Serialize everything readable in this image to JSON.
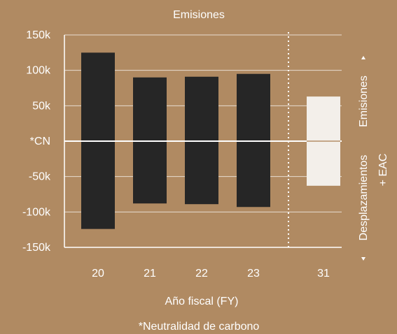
{
  "chart_data": {
    "type": "bar",
    "title": "Emisiones",
    "xlabel": "Año fiscal (FY)",
    "footnote": "*Neutralidad de carbono",
    "categories": [
      "20",
      "21",
      "22",
      "23",
      "31"
    ],
    "series": [
      {
        "values": [
          125000,
          90000,
          91000,
          95000,
          63000
        ]
      },
      {
        "values": [
          -124000,
          -88000,
          -89000,
          -93000,
          -63000
        ]
      }
    ],
    "ylim": [
      -150000,
      150000
    ],
    "y_ticks": [
      {
        "value": 150000,
        "label": "150k"
      },
      {
        "value": 100000,
        "label": "100k"
      },
      {
        "value": 50000,
        "label": "50k"
      },
      {
        "value": 0,
        "label": "*CN"
      },
      {
        "value": -50000,
        "label": "-50k"
      },
      {
        "value": -100000,
        "label": "-100k"
      },
      {
        "value": -150000,
        "label": "-150k"
      }
    ],
    "grid": true,
    "right_labels": {
      "upper": "Emisiones",
      "lower_line1": "Desplazamientos",
      "lower_line2": "+ EAC"
    },
    "projection_divider": "dotted line between 23 and 31",
    "colors": {
      "background": "#b08a62",
      "bar_actual": "#262626",
      "bar_projected": "#f3efea",
      "text": "#ffffff",
      "grid": "#ffffff"
    }
  }
}
